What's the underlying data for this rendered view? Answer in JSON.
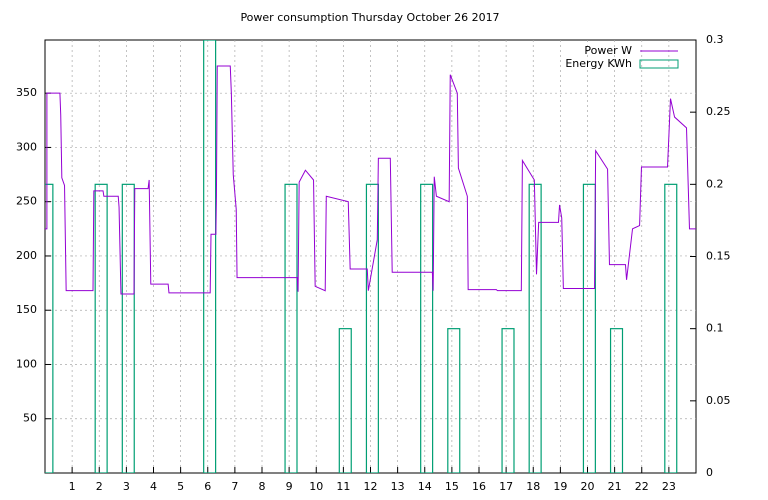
{
  "chart_data": {
    "type": "line",
    "title": "Power consumption Thursday October 26 2017",
    "xlim": [
      0,
      24
    ],
    "xticks": [
      1,
      2,
      3,
      4,
      5,
      6,
      7,
      8,
      9,
      10,
      11,
      12,
      13,
      14,
      15,
      16,
      17,
      18,
      19,
      20,
      21,
      22,
      23
    ],
    "ylim": [
      0,
      399
    ],
    "yticks": [
      50,
      100,
      150,
      200,
      250,
      300,
      350
    ],
    "y2lim": [
      0,
      0.3
    ],
    "y2ticks": [
      0,
      0.05,
      0.1,
      0.15,
      0.2,
      0.25,
      0.3
    ],
    "grid": true,
    "legend": "top-right",
    "series": [
      {
        "name": "Power W",
        "color": "#9400d3",
        "type": "line",
        "x": [
          0,
          0.07,
          0.07,
          0.55,
          0.58,
          0.62,
          0.72,
          0.78,
          1.77,
          1.8,
          2.14,
          2.17,
          2.7,
          2.73,
          2.8,
          3.28,
          3.31,
          3.8,
          3.84,
          3.9,
          4.54,
          4.57,
          6.09,
          6.12,
          6.3,
          6.32,
          6.35,
          6.83,
          6.87,
          6.94,
          7.05,
          7.08,
          9.3,
          9.33,
          9.37,
          9.6,
          9.9,
          9.96,
          10.33,
          10.37,
          11.18,
          11.25,
          11.88,
          11.92,
          12.25,
          12.29,
          12.73,
          12.8,
          14.28,
          14.31,
          14.35,
          14.43,
          14.9,
          14.94,
          15.2,
          15.24,
          15.57,
          15.6,
          16.64,
          16.68,
          17.56,
          17.6,
          18.04,
          18.12,
          18.2,
          18.93,
          18.97,
          19.05,
          19.11,
          20.26,
          20.3,
          20.74,
          20.81,
          21.4,
          21.44,
          21.66,
          21.92,
          21.99,
          22.95,
          23.06,
          23.21,
          23.65,
          23.76,
          24
        ],
        "values": [
          225,
          225,
          350,
          350,
          330,
          272,
          265,
          168,
          168,
          260,
          260,
          255,
          255,
          245,
          165,
          165,
          262,
          262,
          270,
          174,
          174,
          166,
          166,
          220,
          220,
          255,
          375,
          375,
          350,
          275,
          243,
          180,
          180,
          167,
          268,
          279,
          270,
          172,
          168,
          255,
          250,
          188,
          188,
          168,
          215,
          290,
          290,
          185,
          185,
          168,
          273,
          255,
          250,
          367,
          350,
          281,
          255,
          169,
          169,
          168,
          168,
          288,
          270,
          183,
          231,
          231,
          247,
          235,
          170,
          170,
          297,
          280,
          192,
          192,
          178,
          225,
          228,
          282,
          282,
          345,
          328,
          318,
          225,
          225
        ]
      },
      {
        "name": "Energy KWh",
        "color": "#009e73",
        "type": "boxes",
        "axis": "y2",
        "x": [
          0.07,
          2.07,
          3.07,
          6.07,
          9.07,
          11.07,
          12.07,
          14.07,
          15.07,
          17.07,
          18.07,
          20.07,
          21.07,
          23.07
        ],
        "values": [
          0.2,
          0.2,
          0.2,
          0.3,
          0.2,
          0.1,
          0.2,
          0.2,
          0.1,
          0.1,
          0.2,
          0.2,
          0.1,
          0.2
        ]
      }
    ]
  }
}
